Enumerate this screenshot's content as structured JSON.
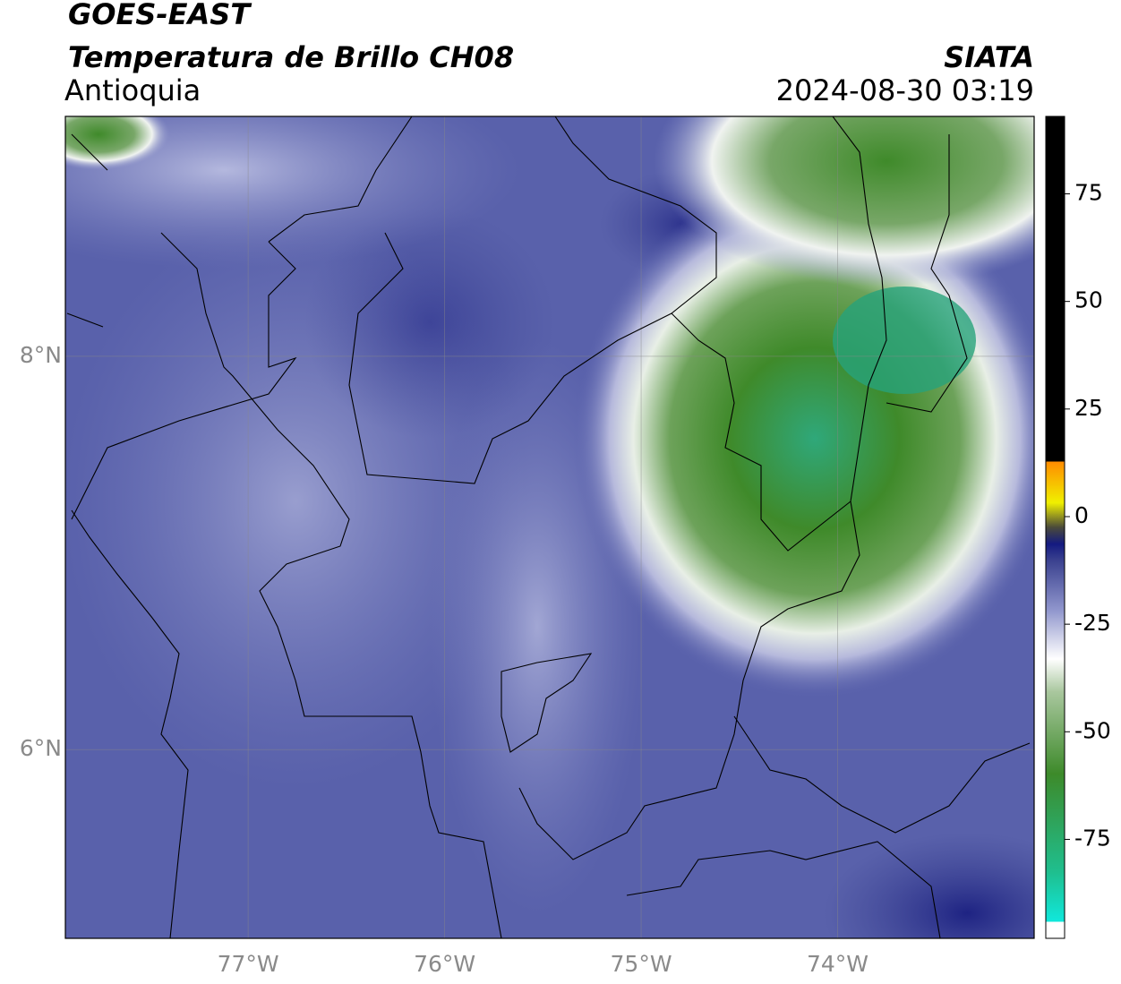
{
  "header": {
    "title": "GOES-EAST",
    "subtitle": "Temperatura de Brillo CH08",
    "region": "Antioquia",
    "source": "SIATA",
    "timestamp": "2024-08-30 03:19"
  },
  "map": {
    "xlim": [
      -77.93,
      -73.0
    ],
    "ylim": [
      5.04,
      9.22
    ],
    "xticks": [
      {
        "value": -77,
        "label": "77°W"
      },
      {
        "value": -76,
        "label": "76°W"
      },
      {
        "value": -75,
        "label": "75°W"
      },
      {
        "value": -74,
        "label": "74°W"
      }
    ],
    "yticks": [
      {
        "value": 6,
        "label": "6°N"
      },
      {
        "value": 8,
        "label": "8°N"
      }
    ],
    "grid": true
  },
  "colorbar": {
    "lim": [
      -98,
      93
    ],
    "ticks": [
      75,
      50,
      25,
      0,
      -25,
      -50,
      -75
    ]
  }
}
